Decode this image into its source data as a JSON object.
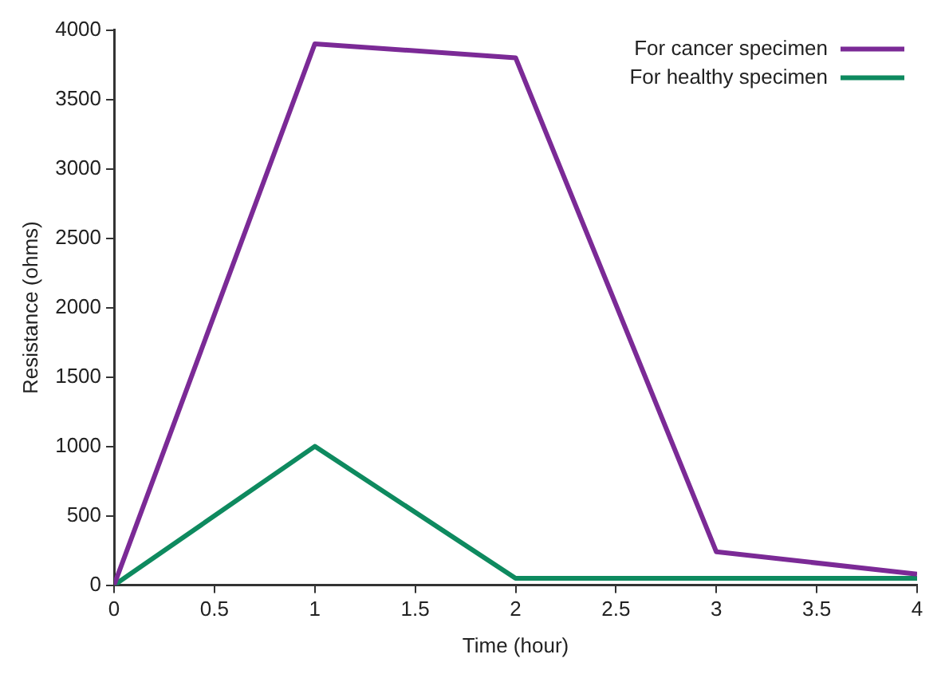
{
  "chart_data": {
    "type": "line",
    "xlabel": "Time (hour)",
    "ylabel": "Resistance (ohms)",
    "x": [
      0,
      1,
      2,
      3,
      4
    ],
    "series": [
      {
        "name": "For cancer specimen",
        "color": "#7b2a96",
        "values": [
          0,
          3900,
          3800,
          240,
          80
        ]
      },
      {
        "name": "For healthy specimen",
        "color": "#0e8a5f",
        "values": [
          0,
          1000,
          50,
          50,
          50
        ]
      }
    ],
    "xlim": [
      0,
      4
    ],
    "xticks": [
      0,
      0.5,
      1,
      1.5,
      2,
      2.5,
      3,
      3.5,
      4
    ],
    "ylim": [
      0,
      4000
    ],
    "yticks": [
      0,
      500,
      1000,
      1500,
      2000,
      2500,
      3000,
      3500,
      4000
    ],
    "grid": false,
    "legend": "top right",
    "marker": "none",
    "line_style": "solid"
  }
}
